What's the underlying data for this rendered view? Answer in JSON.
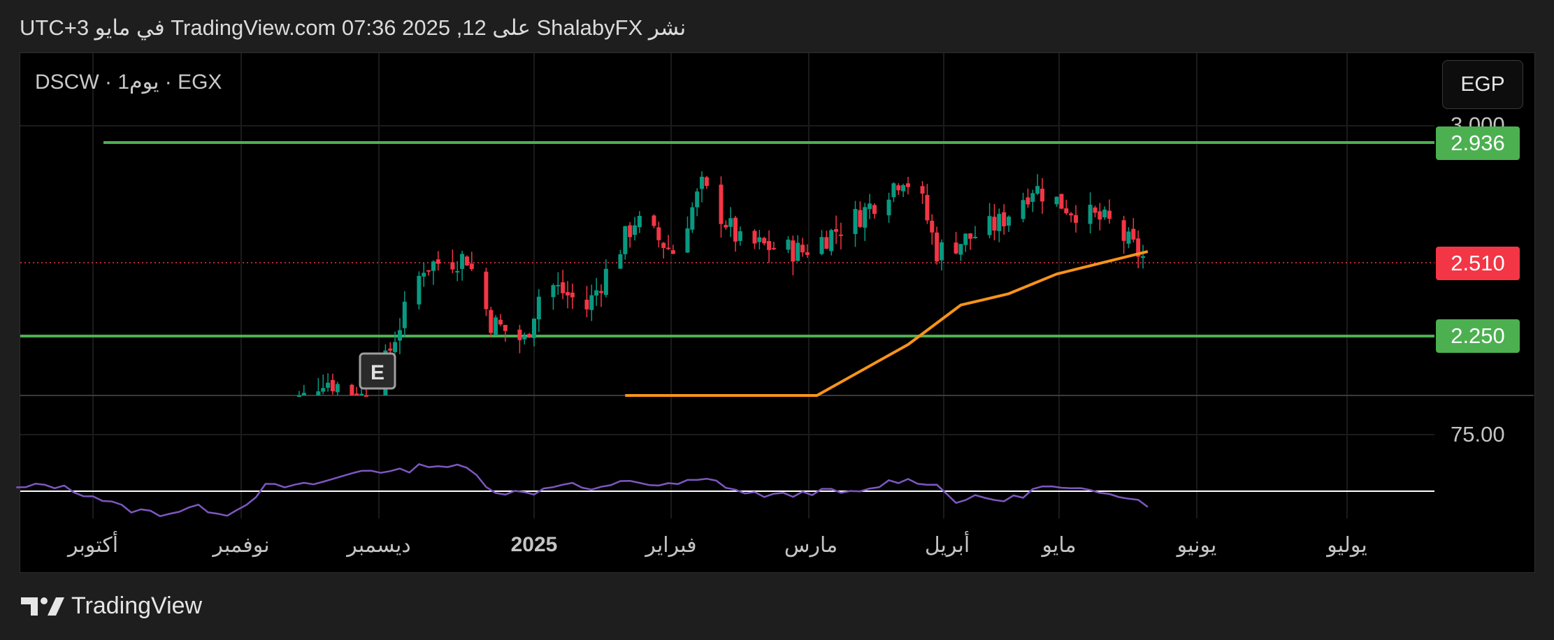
{
  "header": {
    "text": "نشر ShalabyFX على TradingView.com 07:36 2025 ,12 في مايو UTC+3"
  },
  "symbol": {
    "label": "DSCW · 1يوم · EGX"
  },
  "currency_button": {
    "label": "EGP"
  },
  "price_scale": {
    "top_tick": "3.000",
    "rsi_tick": "75.00"
  },
  "price_tags": [
    {
      "value": "2.936",
      "color": "#4caf50"
    },
    {
      "value": "2.510",
      "color": "#f23645"
    },
    {
      "value": "2.250",
      "color": "#4caf50"
    }
  ],
  "earnings_marker": {
    "label": "E"
  },
  "footer": {
    "brand": "TradingView"
  },
  "colors": {
    "up": "#089981",
    "down": "#f23645",
    "ma": "#f7931a",
    "rsi": "#7e57c2",
    "level": "#4caf50"
  },
  "chart_data": {
    "type": "candlestick",
    "months": [
      "أكتوبر",
      "نوفمبر",
      "ديسمبر",
      "2025",
      "فبراير",
      "مارس",
      "أبريل",
      "مايو",
      "يونيو",
      "يوليو"
    ],
    "price_range": [
      1.7,
      3.0
    ],
    "levels": [
      2.936,
      2.25
    ],
    "last_price": 2.51,
    "ohlc_anchors": [
      [
        "2024-11-09",
        1.95
      ],
      [
        "2024-11-18",
        2.1
      ],
      [
        "2024-11-28",
        2.02
      ],
      [
        "2024-12-03",
        2.25
      ],
      [
        "2024-12-09",
        2.5
      ],
      [
        "2024-12-18",
        2.53
      ],
      [
        "2024-12-23",
        2.3
      ],
      [
        "2024-12-30",
        2.23
      ],
      [
        "2025-01-03",
        2.45
      ],
      [
        "2025-01-12",
        2.35
      ],
      [
        "2025-01-22",
        2.66
      ],
      [
        "2025-01-30",
        2.55
      ],
      [
        "2025-02-05",
        2.78
      ],
      [
        "2025-02-13",
        2.58
      ],
      [
        "2025-02-26",
        2.55
      ],
      [
        "2025-03-10",
        2.68
      ],
      [
        "2025-03-19",
        2.82
      ],
      [
        "2025-03-23",
        2.72
      ],
      [
        "2025-03-26",
        2.55
      ],
      [
        "2025-04-02",
        2.6
      ],
      [
        "2025-04-08",
        2.65
      ],
      [
        "2025-04-15",
        2.78
      ],
      [
        "2025-04-23",
        2.7
      ],
      [
        "2025-05-01",
        2.65
      ],
      [
        "2025-05-09",
        2.51
      ]
    ],
    "ma_anchors": [
      [
        "2025-01-20",
        1.7
      ],
      [
        "2025-02-01",
        1.75
      ],
      [
        "2025-02-15",
        1.85
      ],
      [
        "2025-03-01",
        2.01
      ],
      [
        "2025-03-20",
        2.22
      ],
      [
        "2025-03-31",
        2.36
      ],
      [
        "2025-04-10",
        2.4
      ],
      [
        "2025-04-20",
        2.47
      ],
      [
        "2025-05-09",
        2.55
      ]
    ],
    "rsi_reference": 50,
    "rsi_label": 75,
    "rsi_anchors": [
      [
        "2024-09-15",
        51
      ],
      [
        "2024-09-22",
        53
      ],
      [
        "2024-10-01",
        48
      ],
      [
        "2024-10-08",
        42
      ],
      [
        "2024-10-16",
        40
      ],
      [
        "2024-10-22",
        43
      ],
      [
        "2024-10-30",
        40
      ],
      [
        "2024-11-06",
        52
      ],
      [
        "2024-11-13",
        52
      ],
      [
        "2024-11-20",
        55
      ],
      [
        "2024-11-27",
        60
      ],
      [
        "2024-12-03",
        58
      ],
      [
        "2024-12-10",
        62
      ],
      [
        "2024-12-18",
        60
      ],
      [
        "2024-12-24",
        50
      ],
      [
        "2024-12-31",
        49
      ],
      [
        "2025-01-07",
        54
      ],
      [
        "2025-01-14",
        50
      ],
      [
        "2025-01-21",
        55
      ],
      [
        "2025-01-28",
        52
      ],
      [
        "2025-02-02",
        54
      ],
      [
        "2025-02-07",
        55
      ],
      [
        "2025-02-14",
        49
      ],
      [
        "2025-02-22",
        48
      ],
      [
        "2025-03-01",
        50
      ],
      [
        "2025-03-10",
        49
      ],
      [
        "2025-03-17",
        55
      ],
      [
        "2025-03-25",
        54
      ],
      [
        "2025-03-30",
        46
      ],
      [
        "2025-04-04",
        47
      ],
      [
        "2025-04-10",
        46
      ],
      [
        "2025-04-17",
        52
      ],
      [
        "2025-04-24",
        50
      ],
      [
        "2025-05-01",
        50
      ],
      [
        "2025-05-06",
        47
      ],
      [
        "2025-05-09",
        44
      ]
    ]
  }
}
